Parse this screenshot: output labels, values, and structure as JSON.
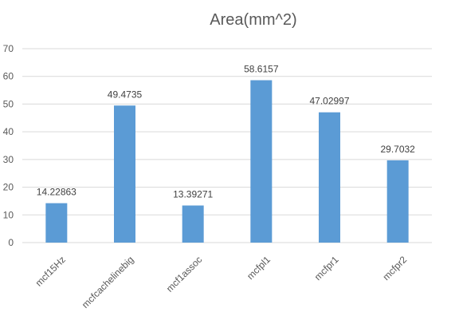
{
  "chart_data": {
    "type": "bar",
    "title": "Area(mm^2)",
    "xlabel": "",
    "ylabel": "",
    "categories": [
      "mcf15Hz",
      "mcfcachelinebig",
      "mcf1assoc",
      "mcfpl1",
      "mcfpr1",
      "mcfpr2"
    ],
    "values": [
      14.22863,
      49.4735,
      13.39271,
      58.6157,
      47.02997,
      29.7032
    ],
    "data_labels": [
      "14.22863",
      "49.4735",
      "13.39271",
      "58.6157",
      "47.02997",
      "29.7032"
    ],
    "y_ticks": [
      0,
      10,
      20,
      30,
      40,
      50,
      60,
      70
    ],
    "ylim": [
      0,
      70
    ],
    "grid": true,
    "legend": "none",
    "bar_color": "#5b9bd5",
    "grid_color": "#d9d9d9",
    "text_color": "#595959"
  }
}
